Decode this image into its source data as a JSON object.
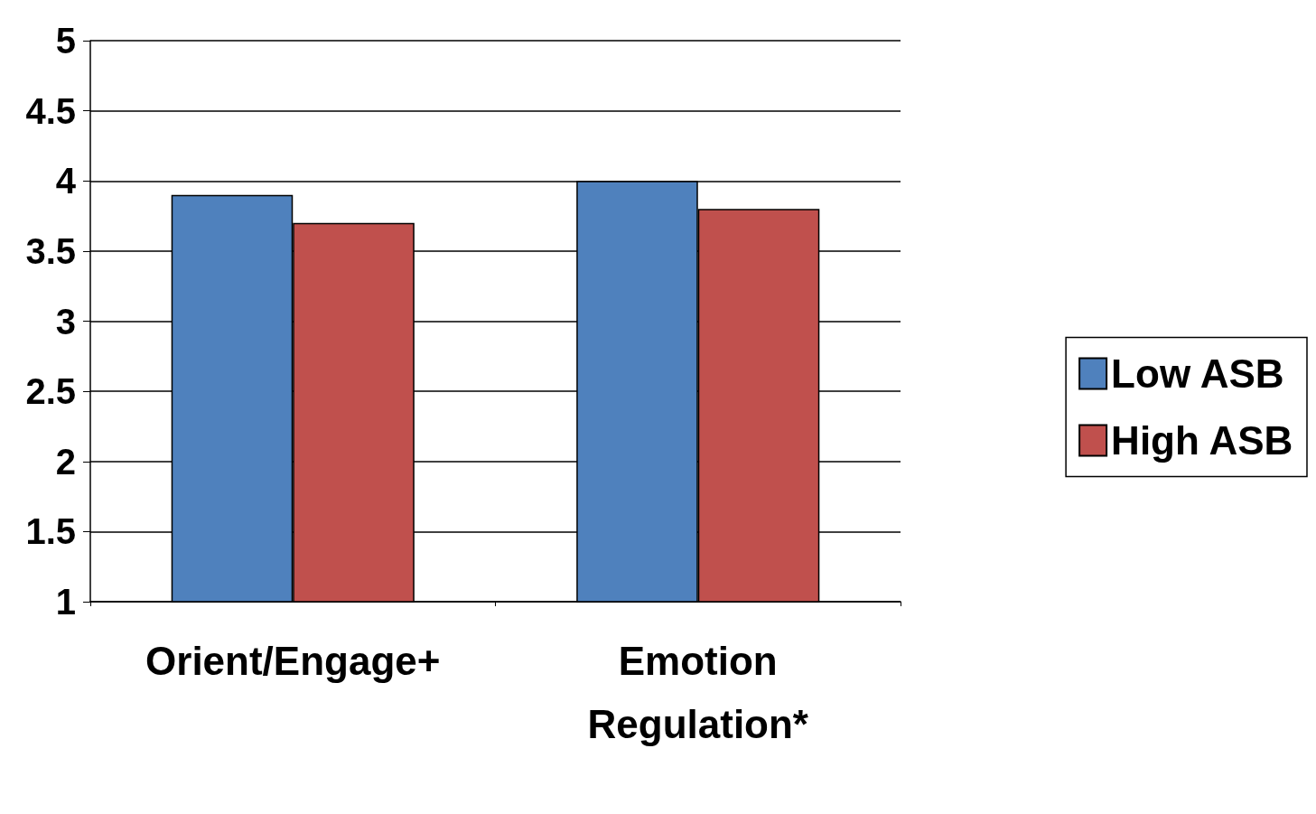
{
  "chart_data": {
    "type": "bar",
    "categories": [
      "Orient/Engage+",
      "Emotion\nRegulation*"
    ],
    "series": [
      {
        "name": "Low ASB",
        "color": "#4f81bd",
        "values": [
          3.9,
          4.0
        ]
      },
      {
        "name": "High ASB",
        "color": "#c0504d",
        "values": [
          3.7,
          3.8
        ]
      }
    ],
    "ylim": [
      1,
      5
    ],
    "yticks": [
      1,
      1.5,
      2,
      2.5,
      3,
      3.5,
      4,
      4.5,
      5
    ],
    "grid": "y",
    "legend": "right"
  }
}
